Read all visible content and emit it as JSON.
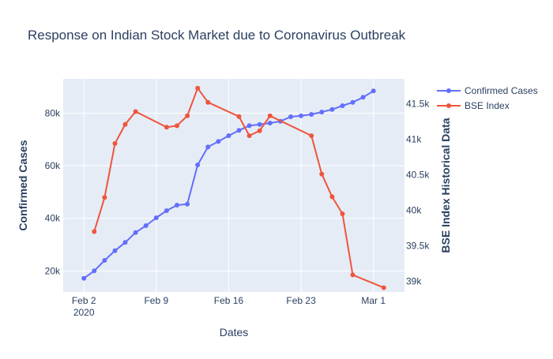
{
  "chart_data": {
    "type": "line",
    "title": "Response on Indian Stock Market due to Coronavirus Outbreak",
    "xlabel": "Dates",
    "ylabel_left": "Confirmed Cases",
    "ylabel_right": "BSE Index Historical Data",
    "x_ticks": [
      {
        "date": "2020-02-02",
        "label": "Feb 2",
        "sublabel": "2020"
      },
      {
        "date": "2020-02-09",
        "label": "Feb 9",
        "sublabel": ""
      },
      {
        "date": "2020-02-16",
        "label": "Feb 16",
        "sublabel": ""
      },
      {
        "date": "2020-02-23",
        "label": "Feb 23",
        "sublabel": ""
      },
      {
        "date": "2020-03-01",
        "label": "Mar 1",
        "sublabel": ""
      }
    ],
    "y_left": {
      "range": [
        12000,
        93000
      ],
      "ticks": [
        20000,
        40000,
        60000,
        80000
      ],
      "tick_labels": [
        "20k",
        "40k",
        "60k",
        "80k"
      ]
    },
    "y_right": {
      "range": [
        38850,
        41850
      ],
      "ticks": [
        39000,
        39500,
        40000,
        40500,
        41000,
        41500
      ],
      "tick_labels": [
        "39k",
        "39.5k",
        "40k",
        "40.5k",
        "41k",
        "41.5k"
      ]
    },
    "x_range": [
      "2020-01-31",
      "2020-03-04"
    ],
    "grid": true,
    "legend_position": "top-right",
    "series": [
      {
        "name": "Confirmed Cases",
        "axis": "left",
        "color": "#636efa",
        "points": [
          {
            "x": "2020-02-02",
            "y": 17200
          },
          {
            "x": "2020-02-03",
            "y": 20000
          },
          {
            "x": "2020-02-04",
            "y": 24000
          },
          {
            "x": "2020-02-05",
            "y": 27700
          },
          {
            "x": "2020-02-06",
            "y": 30800
          },
          {
            "x": "2020-02-07",
            "y": 34600
          },
          {
            "x": "2020-02-08",
            "y": 37200
          },
          {
            "x": "2020-02-09",
            "y": 40200
          },
          {
            "x": "2020-02-10",
            "y": 42900
          },
          {
            "x": "2020-02-11",
            "y": 45000
          },
          {
            "x": "2020-02-12",
            "y": 45400
          },
          {
            "x": "2020-02-13",
            "y": 60300
          },
          {
            "x": "2020-02-14",
            "y": 67100
          },
          {
            "x": "2020-02-15",
            "y": 69200
          },
          {
            "x": "2020-02-16",
            "y": 71400
          },
          {
            "x": "2020-02-17",
            "y": 73400
          },
          {
            "x": "2020-02-18",
            "y": 75200
          },
          {
            "x": "2020-02-19",
            "y": 75700
          },
          {
            "x": "2020-02-20",
            "y": 76200
          },
          {
            "x": "2020-02-21",
            "y": 76900
          },
          {
            "x": "2020-02-22",
            "y": 78600
          },
          {
            "x": "2020-02-23",
            "y": 79000
          },
          {
            "x": "2020-02-24",
            "y": 79500
          },
          {
            "x": "2020-02-25",
            "y": 80400
          },
          {
            "x": "2020-02-26",
            "y": 81400
          },
          {
            "x": "2020-02-27",
            "y": 82800
          },
          {
            "x": "2020-02-28",
            "y": 84100
          },
          {
            "x": "2020-02-29",
            "y": 86000
          },
          {
            "x": "2020-03-01",
            "y": 88400
          }
        ]
      },
      {
        "name": "BSE Index",
        "axis": "right",
        "color": "#ef553b",
        "points": [
          {
            "x": "2020-02-03",
            "y": 39700
          },
          {
            "x": "2020-02-04",
            "y": 40180
          },
          {
            "x": "2020-02-05",
            "y": 40940
          },
          {
            "x": "2020-02-06",
            "y": 41210
          },
          {
            "x": "2020-02-07",
            "y": 41390
          },
          {
            "x": "2020-02-10",
            "y": 41170
          },
          {
            "x": "2020-02-11",
            "y": 41190
          },
          {
            "x": "2020-02-12",
            "y": 41330
          },
          {
            "x": "2020-02-13",
            "y": 41720
          },
          {
            "x": "2020-02-14",
            "y": 41520
          },
          {
            "x": "2020-02-17",
            "y": 41320
          },
          {
            "x": "2020-02-18",
            "y": 41050
          },
          {
            "x": "2020-02-19",
            "y": 41120
          },
          {
            "x": "2020-02-20",
            "y": 41330
          },
          {
            "x": "2020-02-24",
            "y": 41050
          },
          {
            "x": "2020-02-25",
            "y": 40510
          },
          {
            "x": "2020-02-26",
            "y": 40190
          },
          {
            "x": "2020-02-27",
            "y": 39950
          },
          {
            "x": "2020-02-28",
            "y": 39090
          },
          {
            "x": "2020-03-02",
            "y": 38910
          }
        ]
      }
    ]
  }
}
